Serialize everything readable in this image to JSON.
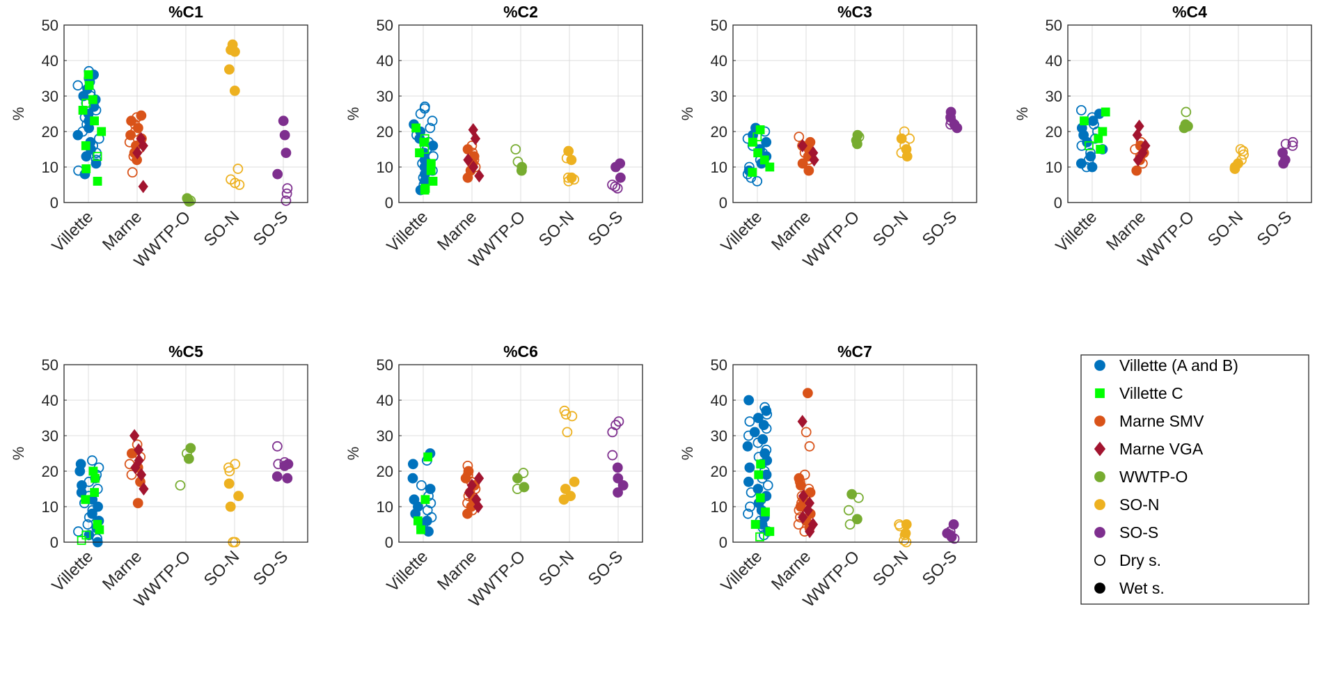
{
  "figure": {
    "ylabel": "%"
  },
  "legend": {
    "entries": [
      {
        "key": "villette_ab",
        "label": "Villette (A and B)"
      },
      {
        "key": "villette_c",
        "label": "Villette C"
      },
      {
        "key": "marne_smv",
        "label": "Marne SMV"
      },
      {
        "key": "marne_vga",
        "label": "Marne VGA"
      },
      {
        "key": "wwtp",
        "label": "WWTP-O"
      },
      {
        "key": "son",
        "label": "SO-N"
      },
      {
        "key": "sos",
        "label": "SO-S"
      },
      {
        "key": "dry",
        "label": "Dry s."
      },
      {
        "key": "wet",
        "label": "Wet s."
      }
    ]
  },
  "chart_data": {
    "type": "scatter",
    "subtype": "categorical strip plot",
    "categories": [
      "Villette",
      "Marne",
      "WWTP-O",
      "SO-N",
      "SO-S"
    ],
    "ylim": [
      0,
      50
    ],
    "yticks": [
      0,
      10,
      20,
      30,
      40,
      50
    ],
    "ylabel": "%",
    "grid": true,
    "legend_position": "bottom-right",
    "series_styles": {
      "villette_ab": {
        "color": "#0072BD",
        "marker": "circle"
      },
      "villette_c": {
        "color": "#00FF00",
        "marker": "square"
      },
      "marne_smv": {
        "color": "#D95319",
        "marker": "circle"
      },
      "marne_vga": {
        "color": "#A2142F",
        "marker": "diamond"
      },
      "wwtp": {
        "color": "#77AC30",
        "marker": "circle"
      },
      "son": {
        "color": "#EDB120",
        "marker": "circle"
      },
      "sos": {
        "color": "#7E2F8E",
        "marker": "circle"
      },
      "dry": {
        "color": "#000000",
        "marker": "circle",
        "filled": false
      },
      "wet": {
        "color": "#000000",
        "marker": "circle",
        "filled": true
      }
    },
    "panels": [
      {
        "title": "%C1",
        "series": [
          {
            "key": "villette_ab",
            "category": "Villette",
            "dry": [
              37,
              35,
              33,
              31,
              30,
              28,
              26,
              24,
              22,
              20,
              18,
              16,
              14,
              12,
              9
            ],
            "wet": [
              36,
              34,
              32,
              30,
              29,
              27,
              25,
              23,
              21,
              19,
              17,
              15,
              13,
              11,
              8
            ]
          },
          {
            "key": "villette_c",
            "category": "Villette",
            "dry": [
              28,
              13
            ],
            "wet": [
              36,
              33,
              29,
              26,
              23,
              20,
              16,
              9.5,
              6
            ]
          },
          {
            "key": "marne_smv",
            "category": "Marne",
            "dry": [
              24,
              22,
              20,
              17,
              15,
              13,
              8.5
            ],
            "wet": [
              24.5,
              23,
              21,
              19,
              18,
              16,
              14,
              12
            ]
          },
          {
            "key": "marne_vga",
            "category": "Marne",
            "dry": [],
            "wet": [
              18,
              16,
              14,
              4.5
            ]
          },
          {
            "key": "wwtp",
            "category": "WWTP-O",
            "dry": [
              0.5
            ],
            "wet": [
              1.2,
              0.3
            ]
          },
          {
            "key": "son",
            "category": "SO-N",
            "dry": [
              9.5,
              6.5,
              5.5,
              5
            ],
            "wet": [
              44.5,
              43,
              42.5,
              37.5,
              31.5
            ]
          },
          {
            "key": "sos",
            "category": "SO-S",
            "dry": [
              4,
              2.5,
              0.5
            ],
            "wet": [
              23,
              19,
              14,
              8
            ]
          }
        ]
      },
      {
        "title": "%C2",
        "series": [
          {
            "key": "villette_ab",
            "category": "Villette",
            "dry": [
              27,
              26.5,
              25,
              23,
              21,
              19,
              17,
              15,
              13,
              11,
              9,
              7,
              5
            ],
            "wet": [
              22,
              20,
              18,
              16,
              14,
              12,
              10,
              8,
              6,
              3.5
            ]
          },
          {
            "key": "villette_c",
            "category": "Villette",
            "dry": [
              18,
              15
            ],
            "wet": [
              21,
              17,
              14,
              11,
              9,
              6,
              4,
              3.5
            ]
          },
          {
            "key": "marne_smv",
            "category": "Marne",
            "dry": [
              16,
              14,
              12,
              10
            ],
            "wet": [
              15,
              13,
              11,
              9,
              7
            ]
          },
          {
            "key": "marne_vga",
            "category": "Marne",
            "dry": [],
            "wet": [
              20.5,
              18,
              12,
              10,
              7.5
            ]
          },
          {
            "key": "wwtp",
            "category": "WWTP-O",
            "dry": [
              15,
              11.5
            ],
            "wet": [
              10,
              9
            ]
          },
          {
            "key": "son",
            "category": "SO-N",
            "dry": [
              12.5,
              7,
              6.5,
              6
            ],
            "wet": [
              14.5,
              12,
              7
            ]
          },
          {
            "key": "sos",
            "category": "SO-S",
            "dry": [
              5,
              4.5,
              4
            ],
            "wet": [
              11,
              10,
              7
            ]
          }
        ]
      },
      {
        "title": "%C3",
        "series": [
          {
            "key": "villette_ab",
            "category": "Villette",
            "dry": [
              20,
              18,
              16,
              14,
              12,
              10,
              8,
              7,
              6
            ],
            "wet": [
              21,
              19,
              17,
              15,
              13,
              11,
              9
            ]
          },
          {
            "key": "villette_c",
            "category": "Villette",
            "dry": [
              18.5
            ],
            "wet": [
              20.5,
              17,
              14,
              12,
              10,
              8.5
            ]
          },
          {
            "key": "marne_smv",
            "category": "Marne",
            "dry": [
              18.5,
              16,
              14,
              12
            ],
            "wet": [
              17,
              15,
              13,
              11,
              9
            ]
          },
          {
            "key": "marne_vga",
            "category": "Marne",
            "dry": [],
            "wet": [
              16,
              14,
              12
            ]
          },
          {
            "key": "wwtp",
            "category": "WWTP-O",
            "dry": [
              18.5
            ],
            "wet": [
              19,
              17.5,
              16.5
            ]
          },
          {
            "key": "son",
            "category": "SO-N",
            "dry": [
              20,
              18,
              16,
              14
            ],
            "wet": [
              18,
              15,
              13
            ]
          },
          {
            "key": "sos",
            "category": "SO-S",
            "dry": [
              23,
              22
            ],
            "wet": [
              25.5,
              24,
              22,
              21
            ]
          }
        ]
      },
      {
        "title": "%C4",
        "series": [
          {
            "key": "villette_ab",
            "category": "Villette",
            "dry": [
              26,
              24,
              22,
              20,
              18,
              16,
              14,
              12,
              10
            ],
            "wet": [
              25,
              23,
              21,
              19,
              17,
              15,
              13,
              11,
              10
            ]
          },
          {
            "key": "villette_c",
            "category": "Villette",
            "dry": [
              16
            ],
            "wet": [
              25.5,
              23,
              20,
              18,
              15
            ]
          },
          {
            "key": "marne_smv",
            "category": "Marne",
            "dry": [
              17,
              15,
              13,
              11
            ],
            "wet": [
              16,
              14,
              12,
              9
            ]
          },
          {
            "key": "marne_vga",
            "category": "Marne",
            "dry": [],
            "wet": [
              21.5,
              19,
              16,
              14,
              12
            ]
          },
          {
            "key": "wwtp",
            "category": "WWTP-O",
            "dry": [
              25.5
            ],
            "wet": [
              22,
              21.5,
              21
            ]
          },
          {
            "key": "son",
            "category": "SO-N",
            "dry": [
              15,
              14.5,
              13.5,
              12
            ],
            "wet": [
              11,
              10,
              9.5
            ]
          },
          {
            "key": "sos",
            "category": "SO-S",
            "dry": [
              17,
              16.5,
              16
            ],
            "wet": [
              14,
              12,
              11
            ]
          }
        ]
      },
      {
        "title": "%C5",
        "series": [
          {
            "key": "villette_ab",
            "category": "Villette",
            "dry": [
              23,
              21,
              19,
              17,
              15,
              13,
              11,
              9,
              7,
              5,
              3,
              1
            ],
            "wet": [
              22,
              20,
              18,
              16,
              14,
              12,
              10,
              8,
              6,
              4,
              2,
              0
            ]
          },
          {
            "key": "villette_c",
            "category": "Villette",
            "dry": [
              2,
              0.5
            ],
            "wet": [
              20,
              18,
              14,
              12,
              5,
              3.5
            ]
          },
          {
            "key": "marne_smv",
            "category": "Marne",
            "dry": [
              27.5,
              24,
              22,
              19
            ],
            "wet": [
              25,
              21,
              17,
              11
            ]
          },
          {
            "key": "marne_vga",
            "category": "Marne",
            "dry": [],
            "wet": [
              30,
              26,
              23,
              21,
              19,
              15
            ]
          },
          {
            "key": "wwtp",
            "category": "WWTP-O",
            "dry": [
              25,
              16
            ],
            "wet": [
              26.5,
              23.5
            ]
          },
          {
            "key": "son",
            "category": "SO-N",
            "dry": [
              22,
              21,
              20,
              0,
              0,
              0
            ],
            "wet": [
              16.5,
              13,
              10
            ]
          },
          {
            "key": "sos",
            "category": "SO-S",
            "dry": [
              27,
              22,
              22.5
            ],
            "wet": [
              22,
              21.5,
              18.5,
              18
            ]
          }
        ]
      },
      {
        "title": "%C6",
        "series": [
          {
            "key": "villette_ab",
            "category": "Villette",
            "dry": [
              23,
              16,
              13,
              11,
              9,
              7,
              5
            ],
            "wet": [
              25,
              22,
              18,
              15,
              12,
              10,
              8,
              6,
              4,
              3
            ]
          },
          {
            "key": "villette_c",
            "category": "Villette",
            "dry": [],
            "wet": [
              24,
              12,
              6,
              3.5
            ]
          },
          {
            "key": "marne_smv",
            "category": "Marne",
            "dry": [
              21.5,
              19,
              17,
              15,
              13,
              11,
              9
            ],
            "wet": [
              20,
              18,
              16,
              14,
              12,
              10,
              8
            ]
          },
          {
            "key": "marne_vga",
            "category": "Marne",
            "dry": [],
            "wet": [
              18,
              16,
              14,
              12,
              10
            ]
          },
          {
            "key": "wwtp",
            "category": "WWTP-O",
            "dry": [
              19.5,
              15
            ],
            "wet": [
              18,
              15.5
            ]
          },
          {
            "key": "son",
            "category": "SO-N",
            "dry": [
              37,
              36,
              35.5,
              31
            ],
            "wet": [
              17,
              15,
              13,
              12
            ]
          },
          {
            "key": "sos",
            "category": "SO-S",
            "dry": [
              34,
              33,
              31,
              24.5
            ],
            "wet": [
              21,
              18,
              16,
              14
            ]
          }
        ]
      },
      {
        "title": "%C7",
        "series": [
          {
            "key": "villette_ab",
            "category": "Villette",
            "dry": [
              38,
              36,
              34,
              32,
              30,
              28,
              26,
              24,
              22,
              20,
              18,
              16,
              14,
              12,
              10,
              8,
              6,
              4,
              2
            ],
            "wet": [
              40,
              37,
              35,
              33,
              31,
              29,
              27,
              25,
              23,
              21,
              19,
              17,
              15,
              13,
              11,
              9,
              7,
              5,
              3
            ]
          },
          {
            "key": "villette_c",
            "category": "Villette",
            "dry": [
              1.5
            ],
            "wet": [
              22,
              19,
              12.5,
              8.5,
              5,
              3
            ]
          },
          {
            "key": "marne_smv",
            "category": "Marne",
            "dry": [
              31,
              27,
              19,
              17,
              15,
              13,
              11,
              9,
              7,
              5,
              3
            ],
            "wet": [
              42,
              18,
              16,
              14,
              12,
              10,
              8,
              6,
              4
            ]
          },
          {
            "key": "marne_vga",
            "category": "Marne",
            "dry": [],
            "wet": [
              34,
              13,
              11,
              9,
              7,
              5,
              3
            ]
          },
          {
            "key": "wwtp",
            "category": "WWTP-O",
            "dry": [
              12.5,
              9,
              5
            ],
            "wet": [
              13.5,
              6.5
            ]
          },
          {
            "key": "son",
            "category": "SO-N",
            "dry": [
              5,
              4.5,
              2,
              0.5,
              0
            ],
            "wet": [
              5,
              2.5
            ]
          },
          {
            "key": "sos",
            "category": "SO-S",
            "dry": [
              3,
              2,
              1
            ],
            "wet": [
              5,
              2.5,
              1.5
            ]
          }
        ]
      }
    ]
  }
}
